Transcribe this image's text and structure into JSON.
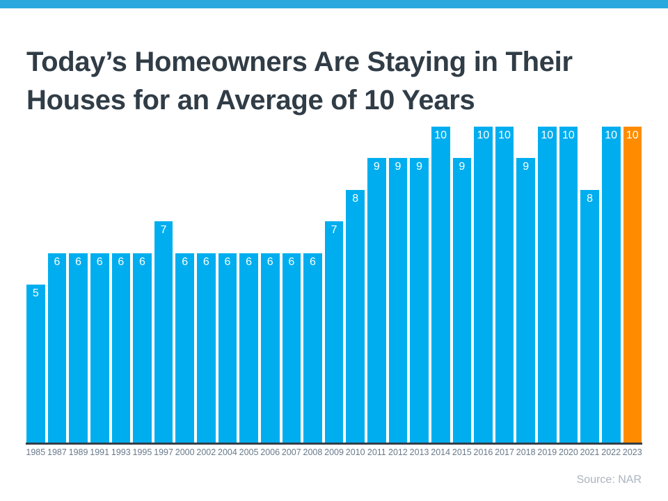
{
  "title": {
    "line1": "Today’s Homeowners Are Staying in Their",
    "line2": "Houses for an Average of 10 Years"
  },
  "source": "Source: NAR",
  "colors": {
    "brand_strip": "#2AA9DF",
    "bar": "#00AEEF",
    "bar_highlight": "#FF8C00",
    "title_text": "#303C46",
    "axis_line": "#333E48",
    "value_label": "#FFFFFF",
    "tick_label": "#68798A",
    "source_text": "#A9B4BE"
  },
  "chart_data": {
    "type": "bar",
    "title": "Today’s Homeowners Are Staying in Their Houses for an Average of 10 Years",
    "categories": [
      "1985",
      "1987",
      "1989",
      "1991",
      "1993",
      "1995",
      "1997",
      "2000",
      "2002",
      "2004",
      "2005",
      "2006",
      "2007",
      "2008",
      "2009",
      "2010",
      "2011",
      "2012",
      "2013",
      "2014",
      "2015",
      "2016",
      "2017",
      "2018",
      "2019",
      "2020",
      "2021",
      "2022",
      "2023"
    ],
    "values": [
      5,
      6,
      6,
      6,
      6,
      6,
      7,
      6,
      6,
      6,
      6,
      6,
      6,
      6,
      7,
      8,
      9,
      9,
      9,
      10,
      9,
      10,
      10,
      9,
      10,
      10,
      8,
      10,
      10
    ],
    "highlight_category": "2023",
    "value_labels_shown": true,
    "xlabel": "",
    "ylabel": "",
    "ylim": [
      0,
      10
    ],
    "grid": false,
    "legend": false,
    "source": "Source: NAR"
  }
}
